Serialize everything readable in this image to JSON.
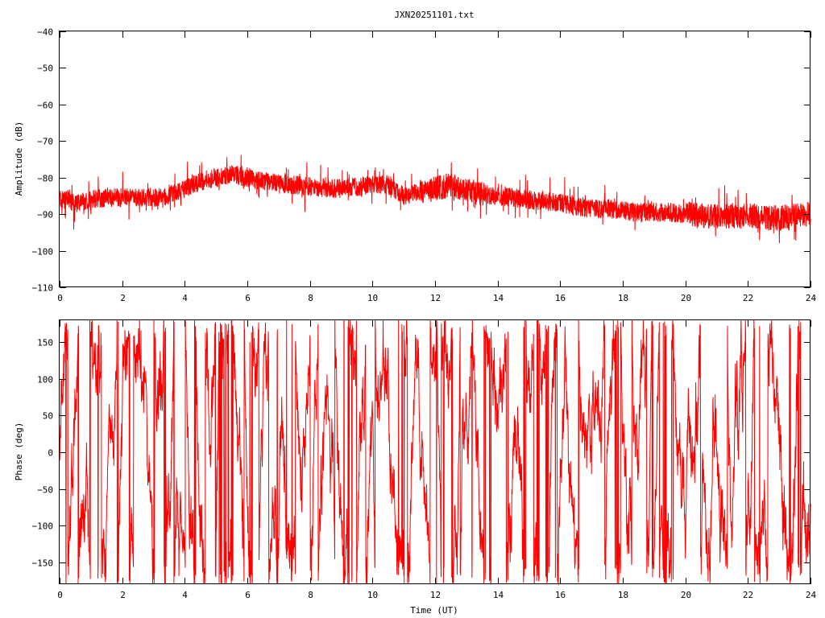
{
  "chart_data": [
    {
      "type": "line",
      "title": "JXN20251101.txt",
      "xlabel": "",
      "ylabel": "Amplitude (dB)",
      "xlim": [
        0,
        24
      ],
      "ylim": [
        -110,
        -40
      ],
      "grid": false,
      "color": "#ff0000",
      "xticks": [
        0,
        2,
        4,
        6,
        8,
        10,
        12,
        14,
        16,
        18,
        20,
        22,
        24
      ],
      "yticks": [
        -110,
        -100,
        -90,
        -80,
        -70,
        -60,
        -50,
        -40
      ],
      "trend": {
        "x": [
          0,
          0.5,
          1,
          1.5,
          2,
          2.5,
          3,
          3.5,
          4,
          4.5,
          5,
          5.5,
          6,
          6.5,
          7,
          7.5,
          8,
          8.5,
          9,
          9.5,
          10,
          10.5,
          11,
          11.5,
          12,
          12.5,
          13,
          13.5,
          14,
          14.5,
          15,
          15.5,
          16,
          16.5,
          17,
          17.5,
          18,
          18.5,
          19,
          19.5,
          20,
          20.5,
          21,
          21.5,
          22,
          22.5,
          23,
          23.5,
          24
        ],
        "y": [
          -86,
          -87,
          -86,
          -85.5,
          -85.5,
          -85.5,
          -85.5,
          -85,
          -83,
          -81,
          -80,
          -79,
          -80,
          -81,
          -81.5,
          -82,
          -82.5,
          -83,
          -83,
          -82.5,
          -82,
          -82,
          -85,
          -84,
          -83,
          -82,
          -83.5,
          -84.5,
          -85,
          -85.5,
          -86,
          -86.5,
          -87,
          -88,
          -88.5,
          -88.5,
          -89,
          -89.5,
          -89.5,
          -89.5,
          -90,
          -90.5,
          -90.5,
          -90.5,
          -90.5,
          -91,
          -91,
          -90.5,
          -90
        ]
      }
    },
    {
      "type": "line",
      "title": "",
      "xlabel": "Time (UT)",
      "ylabel": "Phase (deg)",
      "xlim": [
        0,
        24
      ],
      "ylim": [
        -180,
        180
      ],
      "grid": false,
      "color": "#ff0000",
      "xticks": [
        0,
        2,
        4,
        6,
        8,
        10,
        12,
        14,
        16,
        18,
        20,
        22,
        24
      ],
      "yticks": [
        -150,
        -100,
        -50,
        0,
        50,
        100,
        150
      ]
    }
  ]
}
